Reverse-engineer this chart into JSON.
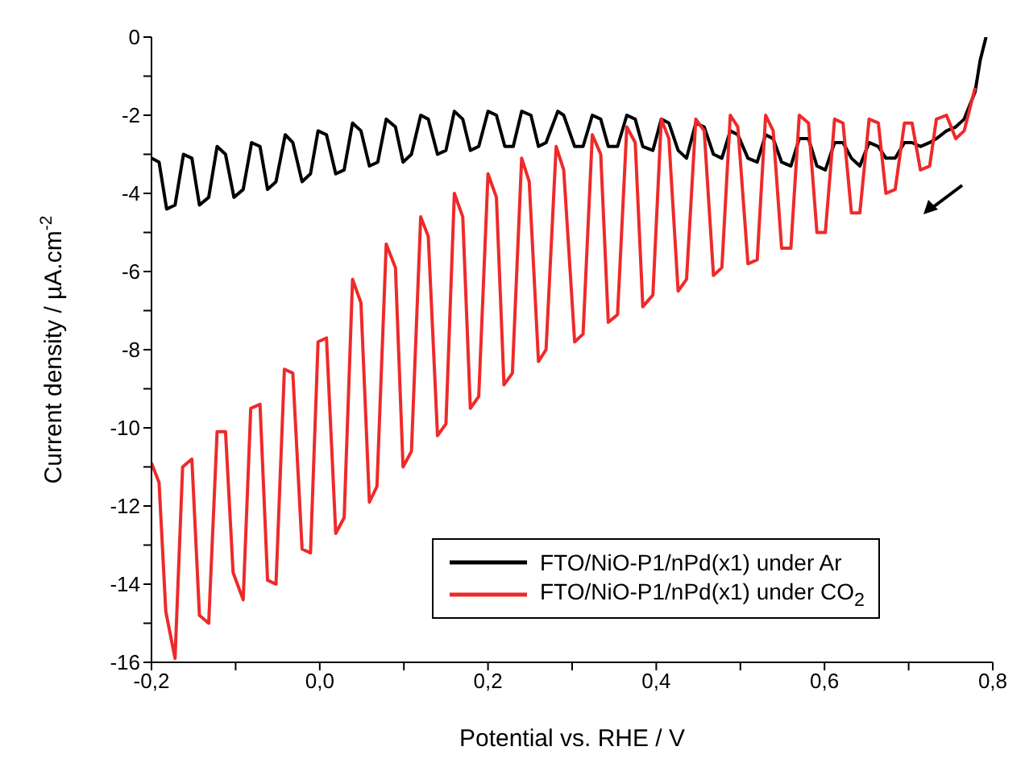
{
  "chart_data": {
    "type": "line",
    "xlabel": "Potential vs. RHE / V",
    "ylabel": "Current density / µA.cm$^{-2}$",
    "xlim": [
      -0.2,
      0.8
    ],
    "xticks": [
      {
        "value": -0.2,
        "label": "-0,2"
      },
      {
        "value": -0.1,
        "label": null
      },
      {
        "value": 0,
        "label": "0,0"
      },
      {
        "value": 0.1,
        "label": null
      },
      {
        "value": 0.2,
        "label": "0,2"
      },
      {
        "value": 0.3,
        "label": null
      },
      {
        "value": 0.4,
        "label": "0,4"
      },
      {
        "value": 0.5,
        "label": null
      },
      {
        "value": 0.6,
        "label": "0,6"
      },
      {
        "value": 0.7,
        "label": null
      },
      {
        "value": 0.8,
        "label": "0,8"
      }
    ],
    "ylim": [
      -16,
      0
    ],
    "yticks": [
      -16,
      {
        "value": -15,
        "label": null
      },
      -14,
      {
        "value": -13,
        "label": null
      },
      -12,
      {
        "value": -11,
        "label": null
      },
      -10,
      {
        "value": -9,
        "label": null
      },
      -8,
      {
        "value": -7,
        "label": null
      },
      -6,
      {
        "value": -5,
        "label": null
      },
      -4,
      {
        "value": -3,
        "label": null
      },
      -2,
      {
        "value": -1,
        "label": null
      },
      0
    ],
    "legend": "bottom right",
    "marker": "none",
    "line_style": "solid",
    "series": [
      {
        "name": "FTO/NiO-P1/nPd(x1) under Ar",
        "color": "#000000",
        "x": [
          -0.2,
          -0.191,
          -0.182,
          -0.172,
          -0.162,
          -0.152,
          -0.143,
          -0.132,
          -0.122,
          -0.112,
          -0.102,
          -0.091,
          -0.081,
          -0.071,
          -0.062,
          -0.052,
          -0.041,
          -0.032,
          -0.021,
          -0.011,
          -0.002,
          0.008,
          0.019,
          0.029,
          0.039,
          0.049,
          0.059,
          0.069,
          0.079,
          0.09,
          0.099,
          0.109,
          0.12,
          0.129,
          0.14,
          0.15,
          0.16,
          0.17,
          0.179,
          0.189,
          0.2,
          0.21,
          0.22,
          0.23,
          0.24,
          0.251,
          0.26,
          0.269,
          0.283,
          0.29,
          0.303,
          0.313,
          0.324,
          0.334,
          0.343,
          0.354,
          0.365,
          0.375,
          0.384,
          0.396,
          0.406,
          0.415,
          0.426,
          0.436,
          0.447,
          0.457,
          0.468,
          0.478,
          0.488,
          0.497,
          0.509,
          0.52,
          0.53,
          0.539,
          0.549,
          0.56,
          0.57,
          0.581,
          0.591,
          0.601,
          0.612,
          0.622,
          0.632,
          0.642,
          0.653,
          0.664,
          0.673,
          0.684,
          0.695,
          0.704,
          0.714,
          0.725,
          0.733,
          0.745,
          0.756,
          0.766,
          0.779,
          0.785,
          0.792
        ],
        "values": [
          -3.1,
          -3.2,
          -4.4,
          -4.3,
          -3.0,
          -3.1,
          -4.3,
          -4.1,
          -2.8,
          -3.0,
          -4.1,
          -3.9,
          -2.7,
          -2.8,
          -3.9,
          -3.7,
          -2.5,
          -2.7,
          -3.7,
          -3.5,
          -2.4,
          -2.5,
          -3.5,
          -3.4,
          -2.2,
          -2.4,
          -3.3,
          -3.2,
          -2.1,
          -2.3,
          -3.2,
          -3.0,
          -2.0,
          -2.1,
          -3.0,
          -2.9,
          -1.9,
          -2.1,
          -2.9,
          -2.8,
          -1.9,
          -2.0,
          -2.8,
          -2.8,
          -1.9,
          -2.0,
          -2.8,
          -2.7,
          -1.9,
          -2.0,
          -2.8,
          -2.8,
          -2.0,
          -2.1,
          -2.8,
          -2.8,
          -2.0,
          -2.1,
          -2.8,
          -2.9,
          -2.1,
          -2.2,
          -2.9,
          -3.1,
          -2.2,
          -2.3,
          -3.0,
          -3.1,
          -2.4,
          -2.5,
          -3.1,
          -3.2,
          -2.5,
          -2.6,
          -3.2,
          -3.3,
          -2.6,
          -2.6,
          -3.3,
          -3.4,
          -2.7,
          -2.7,
          -3.1,
          -3.3,
          -2.7,
          -2.8,
          -3.1,
          -3.1,
          -2.7,
          -2.7,
          -2.8,
          -2.7,
          -2.6,
          -2.4,
          -2.3,
          -2.1,
          -1.4,
          -0.6,
          0.0
        ]
      },
      {
        "name": "FTO/NiO-P1/nPd(x1) under CO$_{2}$",
        "color": "#ee2a2a",
        "x": [
          -0.2,
          -0.191,
          -0.183,
          -0.172,
          -0.163,
          -0.152,
          -0.143,
          -0.132,
          -0.122,
          -0.112,
          -0.103,
          -0.091,
          -0.082,
          -0.071,
          -0.062,
          -0.052,
          -0.042,
          -0.032,
          -0.021,
          -0.011,
          -0.002,
          0.008,
          0.019,
          0.029,
          0.039,
          0.049,
          0.059,
          0.068,
          0.079,
          0.09,
          0.099,
          0.109,
          0.12,
          0.129,
          0.14,
          0.15,
          0.16,
          0.17,
          0.179,
          0.189,
          0.2,
          0.21,
          0.219,
          0.229,
          0.24,
          0.249,
          0.26,
          0.269,
          0.281,
          0.29,
          0.303,
          0.313,
          0.324,
          0.334,
          0.343,
          0.354,
          0.365,
          0.375,
          0.384,
          0.396,
          0.406,
          0.415,
          0.426,
          0.436,
          0.447,
          0.457,
          0.468,
          0.478,
          0.488,
          0.497,
          0.509,
          0.52,
          0.53,
          0.539,
          0.549,
          0.56,
          0.57,
          0.581,
          0.591,
          0.601,
          0.612,
          0.622,
          0.632,
          0.642,
          0.653,
          0.664,
          0.673,
          0.684,
          0.695,
          0.704,
          0.714,
          0.725,
          0.733,
          0.745,
          0.756,
          0.766,
          0.779
        ],
        "values": [
          -10.9,
          -11.4,
          -14.7,
          -15.9,
          -11.0,
          -10.8,
          -14.8,
          -15.0,
          -10.1,
          -10.1,
          -13.7,
          -14.4,
          -9.5,
          -9.4,
          -13.9,
          -14.0,
          -8.5,
          -8.6,
          -13.1,
          -13.2,
          -7.8,
          -7.7,
          -12.7,
          -12.3,
          -6.2,
          -6.8,
          -11.9,
          -11.5,
          -5.3,
          -5.9,
          -11.0,
          -10.6,
          -4.6,
          -5.1,
          -10.2,
          -9.9,
          -4.0,
          -4.6,
          -9.5,
          -9.2,
          -3.5,
          -4.1,
          -8.9,
          -8.6,
          -3.1,
          -3.7,
          -8.3,
          -8.0,
          -2.8,
          -3.4,
          -7.8,
          -7.6,
          -2.5,
          -3.0,
          -7.3,
          -7.1,
          -2.3,
          -2.7,
          -6.9,
          -6.6,
          -2.1,
          -2.6,
          -6.5,
          -6.2,
          -2.1,
          -2.4,
          -6.1,
          -5.9,
          -2.0,
          -2.3,
          -5.8,
          -5.7,
          -2.0,
          -2.4,
          -5.4,
          -5.4,
          -2.0,
          -2.2,
          -5.0,
          -5.0,
          -2.1,
          -2.2,
          -4.5,
          -4.5,
          -2.1,
          -2.2,
          -4.0,
          -3.9,
          -2.2,
          -2.2,
          -3.4,
          -3.3,
          -2.1,
          -2.0,
          -2.6,
          -2.4,
          -1.3
        ]
      }
    ]
  }
}
